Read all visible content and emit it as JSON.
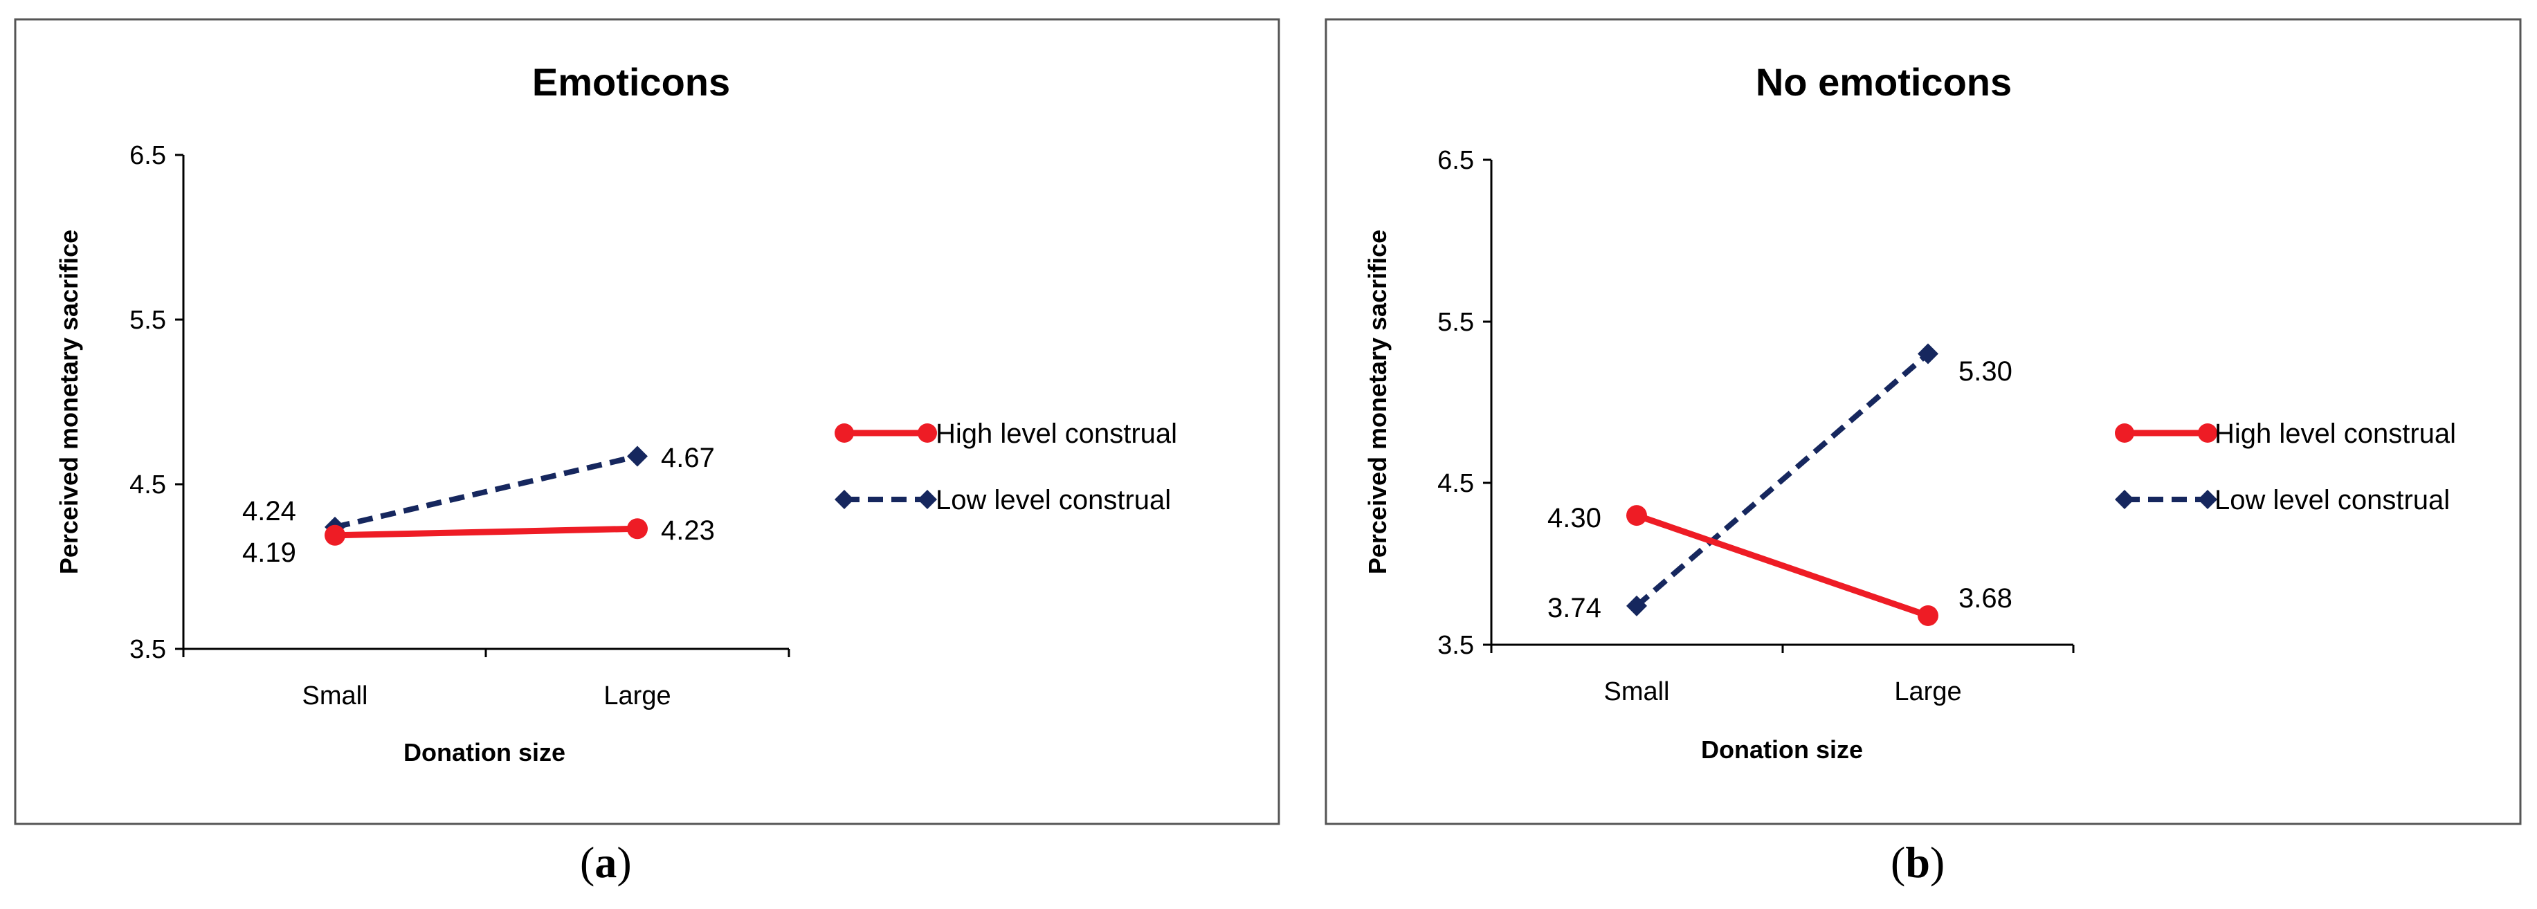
{
  "chart_data": [
    {
      "type": "line",
      "title": "Emoticons",
      "xlabel": "Donation size",
      "ylabel": "Perceived monetary sacrifice",
      "categories": [
        "Small",
        "Large"
      ],
      "yticks": [
        "3.5",
        "4.5",
        "5.5",
        "6.5"
      ],
      "ylim": [
        3.5,
        6.5
      ],
      "series": [
        {
          "name": "High level construal",
          "values": [
            4.19,
            4.23
          ],
          "labels": [
            "4.19",
            "4.23"
          ],
          "color": "#ee1c25",
          "style": "solid",
          "marker": "circle"
        },
        {
          "name": "Low level construal",
          "values": [
            4.24,
            4.67
          ],
          "labels": [
            "4.24",
            "4.67"
          ],
          "color": "#16275e",
          "style": "dashed",
          "marker": "diamond"
        }
      ],
      "caption_letter": "a"
    },
    {
      "type": "line",
      "title": "No emoticons",
      "xlabel": "Donation size",
      "ylabel": "Perceived monetary sacrifice",
      "categories": [
        "Small",
        "Large"
      ],
      "yticks": [
        "3.5",
        "4.5",
        "5.5",
        "6.5"
      ],
      "ylim": [
        3.5,
        6.5
      ],
      "series": [
        {
          "name": "High level construal",
          "values": [
            4.3,
            3.68
          ],
          "labels": [
            "4.30",
            "3.68"
          ],
          "color": "#ee1c25",
          "style": "solid",
          "marker": "circle"
        },
        {
          "name": "Low level construal",
          "values": [
            3.74,
            5.3
          ],
          "labels": [
            "3.74",
            "5.30"
          ],
          "color": "#16275e",
          "style": "dashed",
          "marker": "diamond"
        }
      ],
      "caption_letter": "b"
    }
  ]
}
